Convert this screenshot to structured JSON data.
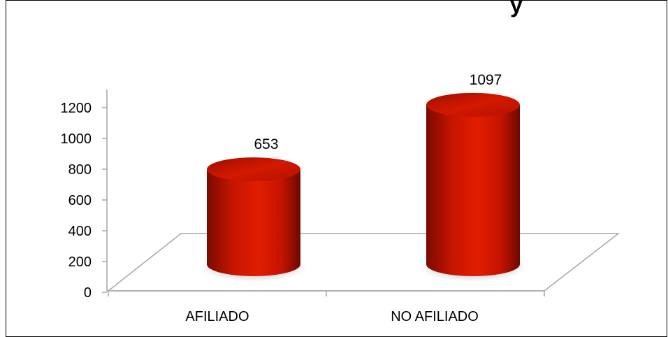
{
  "chart_data": {
    "type": "bar",
    "style": "3d-cylinder",
    "title": "",
    "title_visible_fragment": "y",
    "categories": [
      "AFILIADO",
      "NO AFILIADO"
    ],
    "values": [
      653,
      1097
    ],
    "data_labels": [
      "653",
      "1097"
    ],
    "xlabel": "",
    "ylabel": "",
    "ylim": [
      0,
      1200
    ],
    "yticks": [
      "0",
      "200",
      "400",
      "600",
      "800",
      "1000",
      "1200"
    ],
    "legend": "none",
    "grid": false,
    "bar_color": "#dd1a00"
  }
}
